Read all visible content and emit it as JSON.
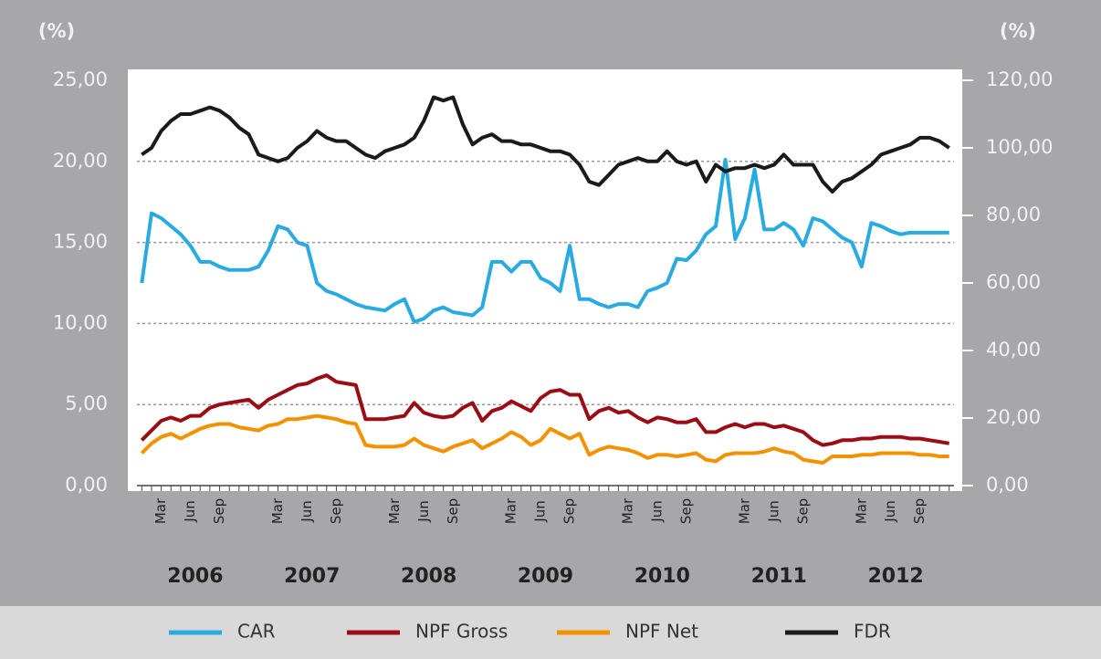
{
  "chart_data": {
    "type": "line",
    "y_axis_title": "(%)",
    "y2_axis_title": "(%)",
    "categories": [
      null,
      null,
      "Mar",
      null,
      null,
      "Jun",
      null,
      null,
      "Sep",
      null,
      null,
      null,
      null,
      null,
      "Mar",
      null,
      null,
      "Jun",
      null,
      null,
      "Sep",
      null,
      null,
      null,
      null,
      null,
      "Mar",
      null,
      null,
      "Jun",
      null,
      null,
      "Sep",
      null,
      null,
      null,
      null,
      null,
      "Mar",
      null,
      null,
      "Jun",
      null,
      null,
      "Sep",
      null,
      null,
      null,
      null,
      null,
      "Mar",
      null,
      null,
      "Jun",
      null,
      null,
      "Sep",
      null,
      null,
      null,
      null,
      null,
      "Mar",
      null,
      null,
      "Jun",
      null,
      null,
      "Sep",
      null,
      null,
      null,
      null,
      null,
      "Mar",
      null,
      null,
      "Jun",
      null,
      null,
      "Sep",
      null,
      null,
      null
    ],
    "year_groups": [
      "2006",
      "2007",
      "2008",
      "2009",
      "2010",
      "2011",
      "2012"
    ],
    "ylim": [
      0,
      25
    ],
    "yticks": [
      {
        "value": 0,
        "label": "0,00"
      },
      {
        "value": 5,
        "label": "5,00"
      },
      {
        "value": 10,
        "label": "10,00"
      },
      {
        "value": 15,
        "label": "15,00"
      },
      {
        "value": 20,
        "label": "20,00"
      },
      {
        "value": 25,
        "label": "25,00"
      }
    ],
    "y2lim": [
      0,
      120
    ],
    "y2ticks": [
      {
        "value": 0,
        "label": "0,00"
      },
      {
        "value": 20,
        "label": "20,00"
      },
      {
        "value": 40,
        "label": "40,00"
      },
      {
        "value": 60,
        "label": "60,00"
      },
      {
        "value": 80,
        "label": "80,00"
      },
      {
        "value": 100,
        "label": "100,00"
      },
      {
        "value": 120,
        "label": "120,00"
      }
    ],
    "grid": true,
    "series": [
      {
        "name": "CAR",
        "color": "#29abe2",
        "values": [
          12.5,
          16.8,
          16.5,
          16,
          15.5,
          14.8,
          13.8,
          13.8,
          13.5,
          13.3,
          13.3,
          13.3,
          13.5,
          14.5,
          16,
          15.8,
          15,
          14.8,
          12.5,
          12,
          11.8,
          11.5,
          11.2,
          11,
          10.9,
          10.8,
          11.2,
          11.5,
          10.1,
          10.3,
          10.8,
          11,
          10.7,
          10.6,
          10.5,
          11,
          13.8,
          13.8,
          13.2,
          13.8,
          13.8,
          12.8,
          12.5,
          12,
          14.8,
          11.5,
          11.5,
          11.2,
          11,
          11.2,
          11.2,
          11,
          12,
          12.2,
          12.5,
          14,
          13.9,
          14.5,
          15.5,
          16,
          20.1,
          15.2,
          16.5,
          19.5,
          15.8,
          15.8,
          16.2,
          15.8,
          14.8,
          16.5,
          16.3,
          15.8,
          15.3,
          15,
          13.5,
          16.2,
          16,
          15.7,
          15.5,
          15.6,
          15.6,
          15.6,
          15.6,
          15.6
        ]
      },
      {
        "name": "NPF Gross",
        "color": "#9b0d14",
        "values": [
          2.8,
          3.4,
          4,
          4.2,
          4,
          4.3,
          4.3,
          4.8,
          5,
          5.1,
          5.2,
          5.3,
          4.8,
          5.3,
          5.6,
          5.9,
          6.2,
          6.3,
          6.6,
          6.8,
          6.4,
          6.3,
          6.2,
          4.1,
          4.1,
          4.1,
          4.2,
          4.3,
          5.1,
          4.5,
          4.3,
          4.2,
          4.3,
          4.8,
          5.1,
          4,
          4.6,
          4.8,
          5.2,
          4.9,
          4.6,
          5.4,
          5.8,
          5.9,
          5.6,
          5.6,
          4.1,
          4.6,
          4.8,
          4.5,
          4.6,
          4.2,
          3.9,
          4.2,
          4.1,
          3.9,
          3.9,
          4.1,
          3.3,
          3.3,
          3.6,
          3.8,
          3.6,
          3.8,
          3.8,
          3.6,
          3.7,
          3.5,
          3.3,
          2.8,
          2.5,
          2.6,
          2.8,
          2.8,
          2.9,
          2.9,
          3,
          3,
          3,
          2.9,
          2.9,
          2.8,
          2.7,
          2.6
        ]
      },
      {
        "name": "NPF Net",
        "color": "#f39200",
        "values": [
          2,
          2.6,
          3,
          3.2,
          2.9,
          3.2,
          3.5,
          3.7,
          3.8,
          3.8,
          3.6,
          3.5,
          3.4,
          3.7,
          3.8,
          4.1,
          4.1,
          4.2,
          4.3,
          4.2,
          4.1,
          3.9,
          3.8,
          2.5,
          2.4,
          2.4,
          2.4,
          2.5,
          2.9,
          2.5,
          2.3,
          2.1,
          2.4,
          2.6,
          2.8,
          2.3,
          2.6,
          2.9,
          3.3,
          3,
          2.5,
          2.8,
          3.5,
          3.2,
          2.9,
          3.2,
          1.9,
          2.2,
          2.4,
          2.3,
          2.2,
          2,
          1.7,
          1.9,
          1.9,
          1.8,
          1.9,
          2,
          1.6,
          1.5,
          1.9,
          2,
          2,
          2,
          2.1,
          2.3,
          2.1,
          2,
          1.6,
          1.5,
          1.4,
          1.8,
          1.8,
          1.8,
          1.9,
          1.9,
          2,
          2,
          2,
          2,
          1.9,
          1.9,
          1.8,
          1.8
        ]
      },
      {
        "name": "FDR",
        "color": "#1a1a1a",
        "axis": "y2",
        "values": [
          98,
          100,
          105,
          108,
          110,
          110,
          111,
          112,
          111,
          109,
          106,
          104,
          98,
          97,
          96,
          97,
          100,
          102,
          105,
          103,
          102,
          102,
          100,
          98,
          97,
          99,
          100,
          101,
          103,
          108,
          115,
          114,
          115,
          107,
          101,
          103,
          104,
          102,
          102,
          101,
          101,
          100,
          99,
          99,
          98,
          95,
          90,
          89,
          92,
          95,
          96,
          97,
          96,
          96,
          99,
          96,
          95,
          96,
          90,
          95,
          93,
          94,
          94,
          95,
          94,
          95,
          98,
          95,
          95,
          95,
          90,
          87,
          90,
          91,
          93,
          95,
          98,
          99,
          100,
          101,
          103,
          103,
          102,
          100
        ]
      }
    ]
  }
}
